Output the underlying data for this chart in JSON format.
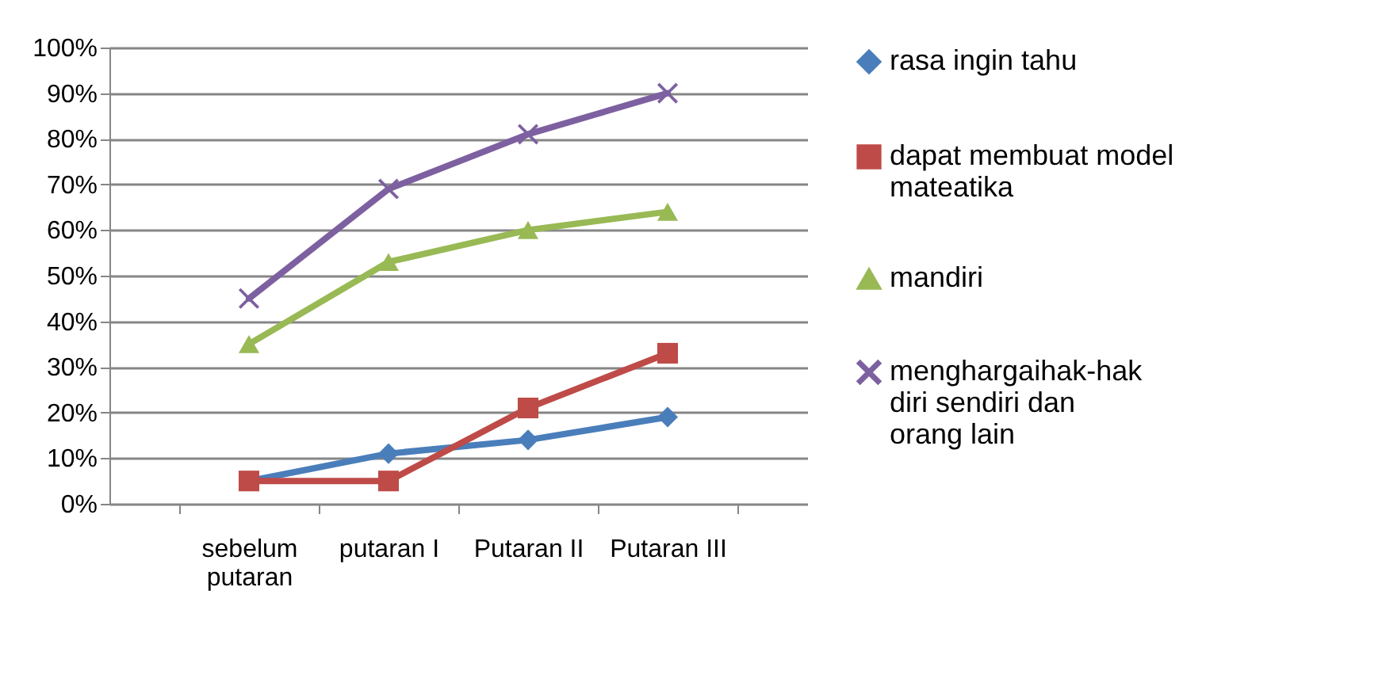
{
  "chart_data": {
    "type": "line",
    "categories": [
      "sebelum putaran",
      "putaran I",
      "Putaran II",
      "Putaran III"
    ],
    "series": [
      {
        "name": "rasa ingin tahu",
        "color": "#4a7ebb",
        "marker": "diamond",
        "values": [
          5,
          11,
          14,
          19
        ]
      },
      {
        "name": "dapat membuat model mateatika",
        "color": "#be4b48",
        "marker": "square",
        "values": [
          5,
          5,
          21,
          33
        ]
      },
      {
        "name": "mandiri",
        "color": "#98b954",
        "marker": "triangle",
        "values": [
          35,
          53,
          60,
          64
        ]
      },
      {
        "name": "menghargaihak-hak diri sendiri dan orang lain",
        "color": "#7d60a0",
        "marker": "cross",
        "values": [
          45,
          69,
          81,
          90
        ]
      }
    ],
    "ylim": [
      0,
      100
    ],
    "yticks": [
      {
        "value": 0,
        "label": "0%"
      },
      {
        "value": 10,
        "label": "10%"
      },
      {
        "value": 20,
        "label": "20%"
      },
      {
        "value": 30,
        "label": "30%"
      },
      {
        "value": 40,
        "label": "40%"
      },
      {
        "value": 50,
        "label": "50%"
      },
      {
        "value": 60,
        "label": "60%"
      },
      {
        "value": 70,
        "label": "70%"
      },
      {
        "value": 80,
        "label": "80%"
      },
      {
        "value": 90,
        "label": "90%"
      },
      {
        "value": 100,
        "label": "100%"
      }
    ],
    "grid": "y",
    "legend": "right",
    "line_style": "solid"
  }
}
